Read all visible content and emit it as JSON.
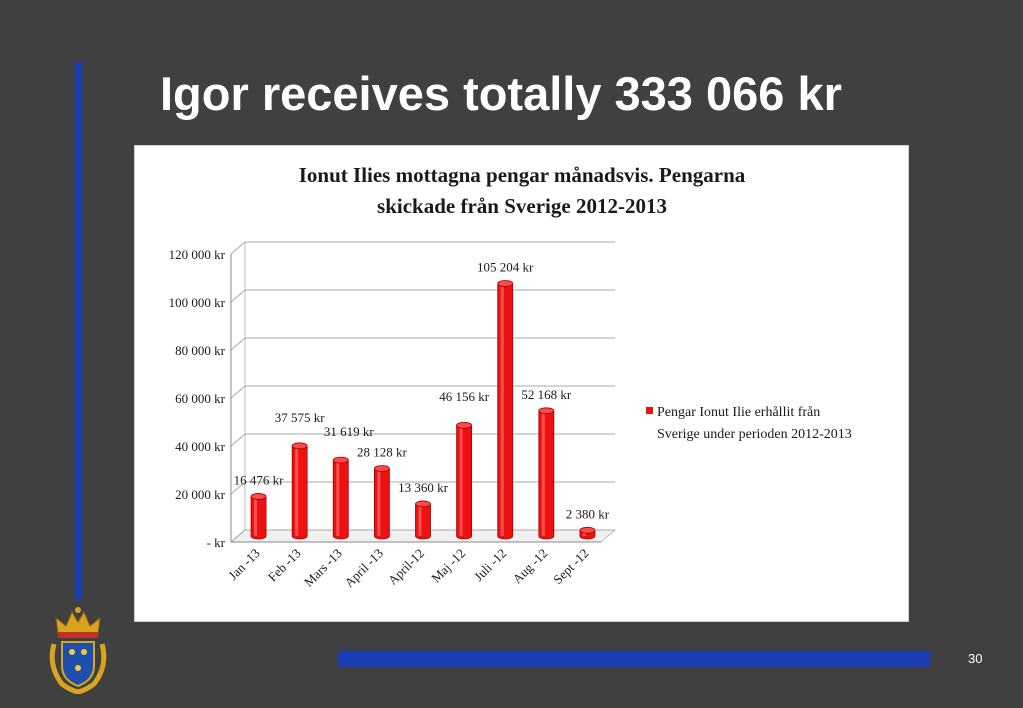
{
  "slide": {
    "title": "Igor receives totally 333 066 kr",
    "page_number": "30",
    "colors": {
      "background": "#404040",
      "accent_blue": "#1a3fb5",
      "bar_red": "#ee1111"
    },
    "emblem_icon": "swedish-police-emblem"
  },
  "chart_data": {
    "type": "bar",
    "title_line1": "Ionut Ilies mottagna pengar månadsvis. Pengarna",
    "title_line2": "skickade från Sverige 2012-2013",
    "categories": [
      "Jan -13",
      "Feb -13",
      "Mars -13",
      "April -13",
      "April-12",
      "Maj -12",
      "Juli -12",
      "Aug -12",
      "Sept -12"
    ],
    "series": [
      {
        "name": "Pengar Ionut Ilie erhållit från Sverige under perioden 2012-2013",
        "values": [
          16476,
          37575,
          31619,
          28128,
          13360,
          46156,
          105204,
          52168,
          2380
        ]
      }
    ],
    "data_labels": [
      "16 476 kr",
      "37 575 kr",
      "31 619 kr",
      "28 128 kr",
      "13 360 kr",
      "46 156 kr",
      "105 204 kr",
      "52 168 kr",
      "2 380 kr"
    ],
    "yticks": [
      0,
      20000,
      40000,
      60000,
      80000,
      100000,
      120000
    ],
    "ytick_labels": [
      "-   kr",
      "20 000 kr",
      "40 000 kr",
      "60 000 kr",
      "80 000 kr",
      "100 000 kr",
      "120 000 kr"
    ],
    "ylim": [
      0,
      120000
    ],
    "legend_line1": "Pengar Ionut Ilie erhållit från",
    "legend_line2": "Sverige under perioden 2012-2013",
    "legend_position": "right",
    "grid": true,
    "style": "3d-cylinder"
  }
}
